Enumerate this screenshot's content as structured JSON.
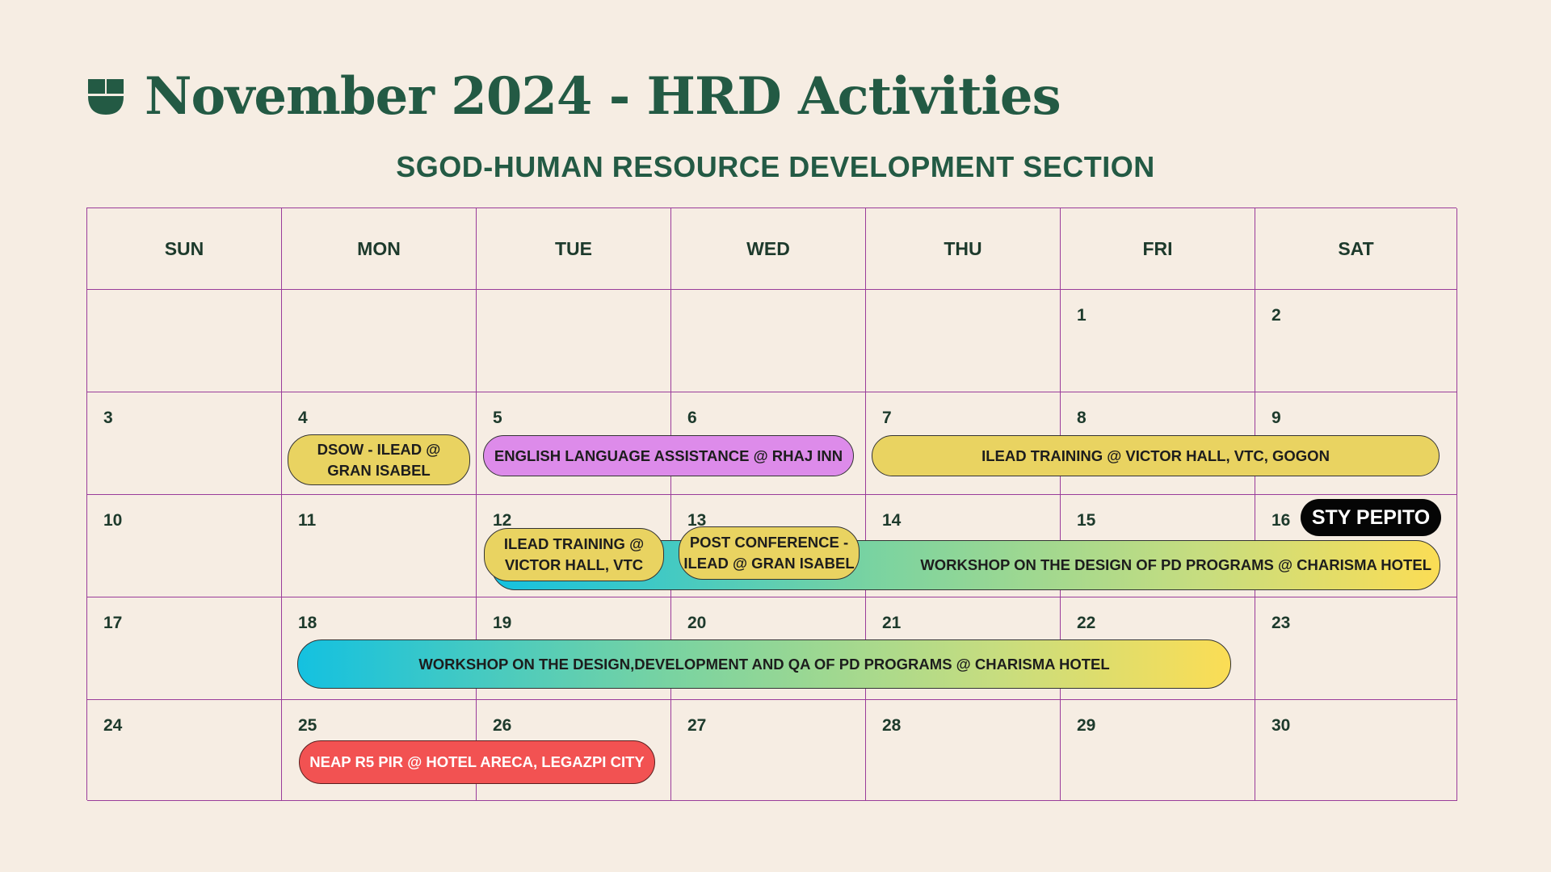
{
  "header": {
    "title": "November 2024 - HRD Activities",
    "subtitle": "SGOD-HUMAN RESOURCE DEVELOPMENT SECTION",
    "logo_icon": "leaf-logo-icon",
    "accent_color": "#235a44"
  },
  "calendar": {
    "weekdays": [
      "SUN",
      "MON",
      "TUE",
      "WED",
      "THU",
      "FRI",
      "SAT"
    ],
    "weeks": [
      [
        "",
        "",
        "",
        "",
        "",
        "1",
        "2"
      ],
      [
        "3",
        "4",
        "5",
        "6",
        "7",
        "8",
        "9"
      ],
      [
        "10",
        "11",
        "12",
        "13",
        "14",
        "15",
        "16"
      ],
      [
        "17",
        "18",
        "19",
        "20",
        "21",
        "22",
        "23"
      ],
      [
        "24",
        "25",
        "26",
        "27",
        "28",
        "29",
        "30"
      ]
    ]
  },
  "events": {
    "dsow_ilead": {
      "line1": "DSOW - ILEAD @",
      "line2": "GRAN ISABEL",
      "days": "4",
      "color": "#e9d361"
    },
    "english_language": {
      "label": "ENGLISH LANGUAGE ASSISTANCE @ RHAJ INN",
      "days": "5-6",
      "color": "#dd8bea"
    },
    "ilead_training_gogon": {
      "label": "ILEAD TRAINING @ VICTOR HALL, VTC, GOGON",
      "days": "7-9",
      "color": "#e9d361"
    },
    "sty_pepito": {
      "label": "STY PEPITO",
      "days": "16",
      "color": "#050505"
    },
    "workshop_pd_charisma": {
      "label": "WORKSHOP ON THE DESIGN  OF PD PROGRAMS @ CHARISMA HOTEL",
      "days": "12-16"
    },
    "ilead_training_vtc": {
      "line1": "ILEAD TRAINING @",
      "line2": "VICTOR HALL, VTC",
      "days": "12",
      "color": "#e9d361"
    },
    "post_conference": {
      "line1": "POST CONFERENCE -",
      "line2": "ILEAD @ GRAN ISABEL",
      "days": "13",
      "color": "#e9d361"
    },
    "workshop_design_development": {
      "label": "WORKSHOP ON THE DESIGN,DEVELOPMENT AND QA OF PD PROGRAMS @ CHARISMA HOTEL",
      "days": "18-22"
    },
    "neap_r5_pir": {
      "label": "NEAP R5 PIR @ HOTEL ARECA, LEGAZPI CITY",
      "days": "25-26",
      "color": "#f25252"
    }
  }
}
